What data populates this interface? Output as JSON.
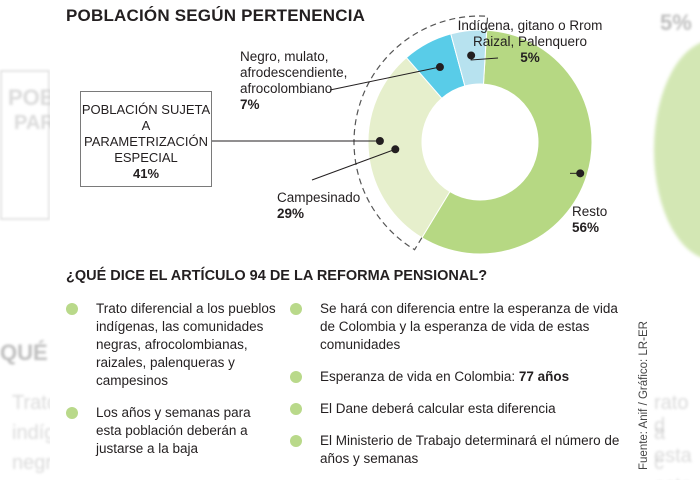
{
  "title": "POBLACIÓN SEGÚN PERTENENCIA",
  "chart_data": {
    "type": "pie",
    "variant": "donut",
    "title": "POBLACIÓN SEGÚN PERTENENCIA",
    "slices": [
      {
        "label": "Resto",
        "value": 56,
        "value_label": "56%",
        "color": "#b6d883"
      },
      {
        "label": "Campesinado",
        "value": 29,
        "value_label": "29%",
        "color": "#e6efcc"
      },
      {
        "label": "Negro, mulato, afrodescendiente, afrocolombiano",
        "value": 7,
        "value_label": "7%",
        "color": "#59cce8"
      },
      {
        "label": "Indígena, gitano o Rrom, Raizal, Palenquero",
        "value": 5,
        "value_label": "5%",
        "color": "#b7e2ef"
      }
    ],
    "group_annotation": {
      "label": "POBLACIÓN SUJETA A PARAMETRIZACIÓN ESPECIAL",
      "value": "41%"
    }
  },
  "labels": {
    "indigena": {
      "line1": "Indígena, gitano o Rrom",
      "line2": "Raizal, Palenquero",
      "pct": "5%"
    },
    "negro": {
      "line1": "Negro, mulato,",
      "line2": "afrodescendiente,",
      "line3": "afrocolombiano",
      "pct": "7%"
    },
    "campesinado": {
      "line1": "Campesinado",
      "pct": "29%"
    },
    "resto": {
      "line1": "Resto",
      "pct": "56%"
    },
    "box": {
      "line1": "POBLACIÓN SUJETA A",
      "line2": "PARAMETRIZACIÓN",
      "line3": "ESPECIAL",
      "pct": "41%"
    }
  },
  "section": {
    "title": "¿QUÉ DICE EL ARTÍCULO 94 DE LA REFORMA PENSIONAL?",
    "left": [
      "Trato diferencial a los pueblos indígenas, las comunidades negras, afrocolombianas, raizales, palenqueras y campesinos",
      "Los años y semanas para esta población deberán a justarse a la baja"
    ],
    "right": [
      {
        "text": "Se hará con diferencia entre la esperanza de vida de Colombia y la esperanza de vida de estas comunidades"
      },
      {
        "text": "Esperanza de vida en Colombia: ",
        "bold": "77 años"
      },
      {
        "text": "El Dane deberá calcular esta diferencia"
      },
      {
        "text": "El Ministerio de Trabajo determinará el número de años y semanas"
      }
    ]
  },
  "credit": "Fuente: Anif / Gráfico: LR-ER",
  "background_ghost": {
    "title_fragment": "POBLA",
    "text_fragment": "PARA",
    "heading_fragment": "QUÉ DIC",
    "text_1": "Trato d",
    "text_2": "indíge",
    "text_3": "negra",
    "pct_fragment": "5%",
    "right_1": "rato d",
    "right_2": "a esta",
    "right_3": "c esta"
  }
}
